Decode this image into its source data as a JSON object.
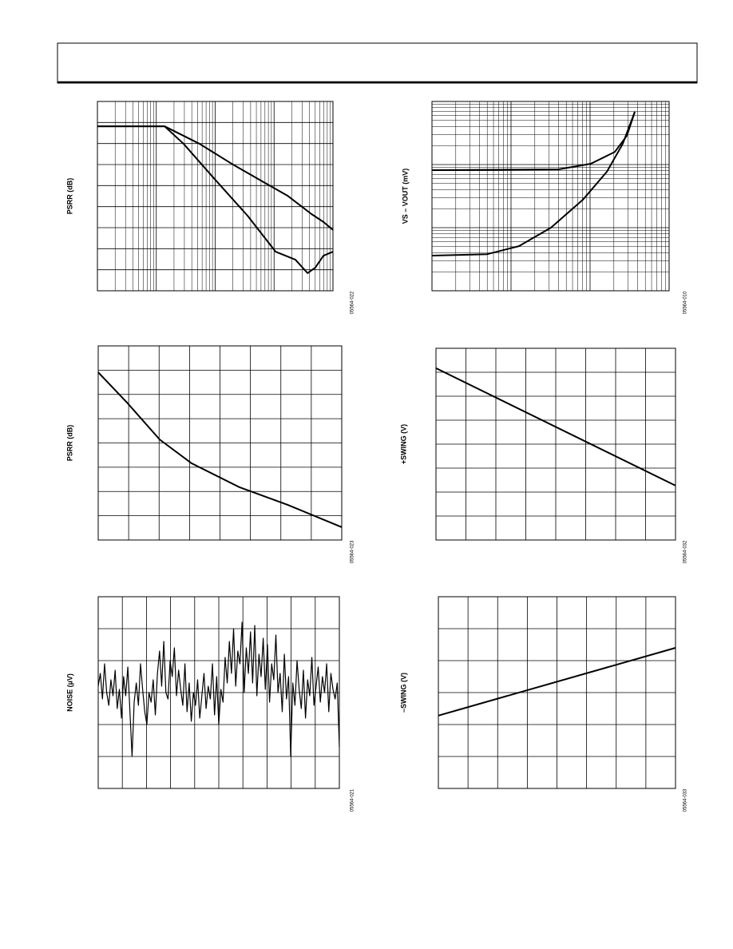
{
  "chart_data": [
    {
      "type": "line",
      "ylabel": "PSRR (dB)",
      "code": "05564-022",
      "xlog": true,
      "ylog": false,
      "xlim": [
        1,
        10000
      ],
      "ylim": [
        0,
        9
      ],
      "ydiv": 9,
      "color": "#000000",
      "series": [
        {
          "x": [
            1,
            13.8,
            54,
            190,
            660,
            1690,
            4300,
            6900,
            10000
          ],
          "values": [
            7.82,
            7.82,
            6.99,
            6.04,
            5.17,
            4.52,
            3.65,
            3.27,
            2.89
          ]
        },
        {
          "x": [
            1,
            13.8,
            29,
            100,
            354,
            1060,
            2300,
            3700,
            5000,
            6900,
            10000
          ],
          "values": [
            7.82,
            7.82,
            6.99,
            5.28,
            3.57,
            1.86,
            1.48,
            0.84,
            1.1,
            1.67,
            1.86
          ]
        }
      ]
    },
    {
      "type": "line",
      "ylabel": "VS – VOUT (mV)",
      "code": "05564-010",
      "xlog": true,
      "ylog": true,
      "xlim": [
        1,
        1000
      ],
      "ylim": [
        1,
        1000
      ],
      "color": "#000000",
      "series": [
        {
          "x": [
            1,
            40,
            102,
            206,
            292,
            368
          ],
          "values": [
            81.5,
            83.9,
            103,
            159,
            286,
            684
          ]
        },
        {
          "x": [
            1,
            5,
            12.6,
            32,
            81,
            163,
            259,
            368
          ],
          "values": [
            3.6,
            3.8,
            5.1,
            10,
            27.7,
            77,
            213,
            684
          ]
        }
      ]
    },
    {
      "type": "line",
      "ylabel": "PSRR (dB)",
      "code": "05564-023",
      "xlog": false,
      "ylog": false,
      "xlim": [
        0,
        8
      ],
      "ylim": [
        0,
        8
      ],
      "xdiv": 8,
      "ydiv": 8,
      "color": "#000000",
      "series": [
        {
          "x": [
            0,
            0.97,
            2.02,
            3.07,
            4.65,
            6.22,
            8
          ],
          "values": [
            6.91,
            5.63,
            4.14,
            3.16,
            2.17,
            1.45,
            0.53
          ]
        }
      ]
    },
    {
      "type": "line",
      "ylabel": "+SWING (V)",
      "code": "05564-032",
      "xlog": false,
      "ylog": false,
      "xlim": [
        0,
        8
      ],
      "ylim": [
        0,
        8
      ],
      "xdiv": 8,
      "ydiv": 8,
      "color": "#000000",
      "series": [
        {
          "x": [
            0,
            8
          ],
          "values": [
            7.17,
            2.27
          ]
        }
      ]
    },
    {
      "type": "line",
      "ylabel": "NOISE (µV)",
      "code": "05564-021",
      "xlog": false,
      "ylog": false,
      "xlim": [
        0,
        10
      ],
      "ylim": [
        0,
        6
      ],
      "xdiv": 10,
      "ydiv": 6,
      "color": "#000000",
      "series": [
        {
          "values": [
            3.2,
            3.6,
            2.8,
            3.9,
            3.0,
            2.6,
            3.4,
            2.9,
            3.7,
            2.5,
            3.1,
            2.2,
            3.5,
            2.9,
            3.8,
            2.4,
            1.0,
            2.7,
            3.3,
            2.6,
            3.9,
            3.1,
            2.4,
            2.0,
            3.0,
            2.7,
            3.4,
            2.3,
            3.6,
            4.3,
            3.2,
            4.6,
            3.0,
            2.8,
            4.0,
            3.5,
            4.4,
            2.9,
            3.7,
            3.1,
            2.6,
            3.9,
            2.4,
            3.3,
            2.1,
            3.0,
            2.6,
            3.4,
            2.2,
            2.9,
            3.6,
            2.5,
            3.2,
            2.8,
            3.9,
            2.3,
            3.5,
            2.0,
            3.1,
            2.7,
            4.1,
            3.3,
            4.6,
            3.6,
            5.0,
            3.2,
            4.3,
            3.9,
            5.2,
            3.0,
            4.4,
            3.6,
            4.9,
            3.3,
            5.1,
            2.9,
            4.2,
            3.5,
            4.7,
            3.1,
            4.5,
            2.7,
            3.9,
            3.4,
            4.8,
            3.0,
            3.6,
            2.4,
            4.2,
            2.8,
            3.5,
            1.0,
            3.3,
            2.6,
            4.0,
            3.1,
            2.5,
            3.7,
            2.2,
            3.4,
            2.9,
            4.1,
            2.6,
            3.2,
            3.8,
            2.7,
            3.5,
            3.0,
            3.9,
            2.4,
            3.6,
            3.1,
            2.8,
            3.3,
            1.3
          ]
        }
      ]
    },
    {
      "type": "line",
      "ylabel": "–SWING (V)",
      "code": "05564-033",
      "xlog": false,
      "ylog": false,
      "xlim": [
        0,
        8
      ],
      "ylim": [
        0,
        6
      ],
      "xdiv": 8,
      "ydiv": 6,
      "color": "#000000",
      "series": [
        {
          "x": [
            0,
            8
          ],
          "values": [
            2.28,
            4.4
          ]
        }
      ]
    }
  ]
}
